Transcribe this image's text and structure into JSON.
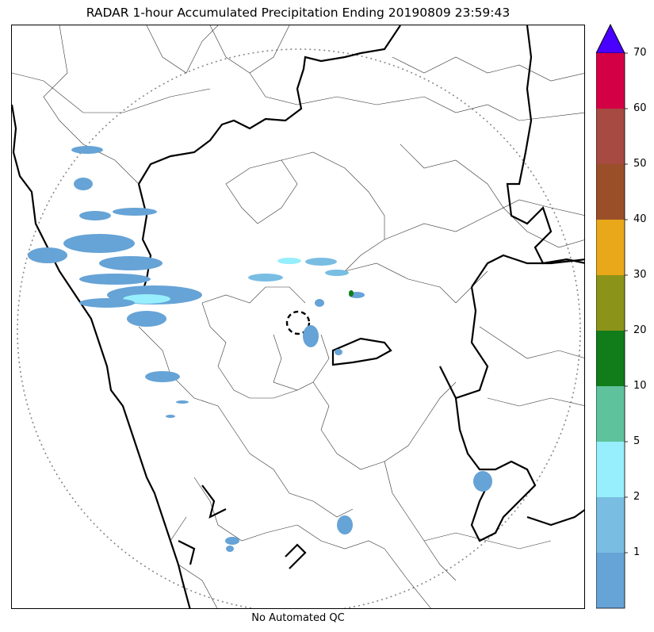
{
  "title": "RADAR 1-hour Accumulated Precipitation Ending 20190809 23:59:43",
  "footer": "No Automated QC",
  "colorbar": {
    "extend_color": "#4a00ff",
    "bins": [
      {
        "from": 0,
        "to": 1,
        "color": "#66a3d6"
      },
      {
        "from": 1,
        "to": 2,
        "color": "#79bde3"
      },
      {
        "from": 2,
        "to": 5,
        "color": "#97eefc"
      },
      {
        "from": 5,
        "to": 10,
        "color": "#5ec39c"
      },
      {
        "from": 10,
        "to": 20,
        "color": "#107c1a"
      },
      {
        "from": 20,
        "to": 30,
        "color": "#8b9418"
      },
      {
        "from": 30,
        "to": 40,
        "color": "#e8a81a"
      },
      {
        "from": 40,
        "to": 50,
        "color": "#9b4f28"
      },
      {
        "from": 50,
        "to": 60,
        "color": "#a64a42"
      },
      {
        "from": 60,
        "to": 70,
        "color": "#d40045"
      }
    ],
    "tick_labels": [
      "1",
      "2",
      "5",
      "10",
      "20",
      "30",
      "40",
      "50",
      "60",
      "70"
    ]
  },
  "map": {
    "range_ring_color": "#888888",
    "boundary_color": "#000000",
    "district_color": "#333333",
    "precip_light": "#66a3d6",
    "precip_medium": "#79bde3",
    "precip_heavy": "#97eefc",
    "precip_intense": "#107c1a"
  }
}
